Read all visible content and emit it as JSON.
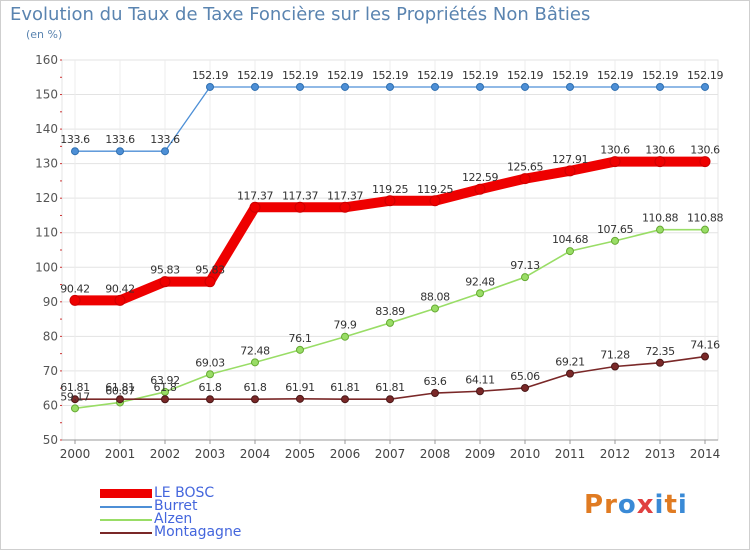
{
  "title": "Evolution du Taux de Taxe Foncière sur les Propriétés Non Bâties",
  "subtitle": "(en %)",
  "logo": {
    "text": "Proxiti",
    "colors": [
      "#e07b22",
      "#e07b22",
      "#3a8ad6",
      "#e04040",
      "#3a8ad6",
      "#e07b22",
      "#3a8ad6"
    ]
  },
  "chart_data": {
    "type": "line",
    "title": "Evolution du Taux de Taxe Foncière sur les Propriétés Non Bâties",
    "ylabel": "(en %)",
    "xlabel": "",
    "ylim": [
      50,
      160
    ],
    "yticks": [
      50,
      60,
      70,
      80,
      90,
      100,
      110,
      120,
      130,
      140,
      150,
      160
    ],
    "grid": true,
    "legend_position": "bottom-left",
    "categories": [
      "2000",
      "2001",
      "2002",
      "2003",
      "2004",
      "2005",
      "2006",
      "2007",
      "2008",
      "2009",
      "2010",
      "2011",
      "2012",
      "2013",
      "2014"
    ],
    "series": [
      {
        "name": "LE BOSC",
        "color": "#ee0000",
        "values": [
          90.42,
          90.42,
          95.83,
          95.83,
          117.37,
          117.37,
          117.37,
          119.25,
          119.25,
          122.59,
          125.65,
          127.91,
          130.6,
          130.6,
          130.6
        ],
        "labels": [
          "90.42",
          "90.42",
          "95.83",
          "95.83",
          "117.37",
          "117.37",
          "117.37",
          "119.25",
          "119.25",
          "122.59",
          "125.65",
          "127.91",
          "130.6",
          "130.6",
          "130.6"
        ]
      },
      {
        "name": "Burret",
        "color": "#4d8fd6",
        "values": [
          133.6,
          133.6,
          133.6,
          152.19,
          152.19,
          152.19,
          152.19,
          152.19,
          152.19,
          152.19,
          152.19,
          152.19,
          152.19,
          152.19,
          152.19
        ],
        "labels": [
          "133.6",
          "133.6",
          "133.6",
          "152.19",
          "152.19",
          "152.19",
          "152.19",
          "152.19",
          "152.19",
          "152.19",
          "152.19",
          "152.19",
          "152.19",
          "152.19",
          "152.19"
        ]
      },
      {
        "name": "Alzen",
        "color": "#99dd66",
        "values": [
          59.17,
          60.87,
          63.92,
          69.03,
          72.48,
          76.1,
          79.9,
          83.89,
          88.08,
          92.48,
          97.13,
          104.68,
          107.65,
          110.88,
          110.88
        ],
        "labels": [
          "59.17",
          "60.87",
          "63.92",
          "69.03",
          "72.48",
          "76.1",
          "79.9",
          "83.89",
          "88.08",
          "92.48",
          "97.13",
          "104.68",
          "107.65",
          "110.88",
          "110.88"
        ]
      },
      {
        "name": "Montagagne",
        "color": "#7a2828",
        "values": [
          61.81,
          61.81,
          61.8,
          61.8,
          61.8,
          61.91,
          61.81,
          61.81,
          63.6,
          64.11,
          65.06,
          69.21,
          71.28,
          72.35,
          74.16
        ],
        "labels": [
          "61.81",
          "61.81",
          "61.8",
          "61.8",
          "61.8",
          "61.91",
          "61.81",
          "61.81",
          "63.6",
          "64.11",
          "65.06",
          "69.21",
          "71.28",
          "72.35",
          "74.16"
        ]
      }
    ]
  }
}
